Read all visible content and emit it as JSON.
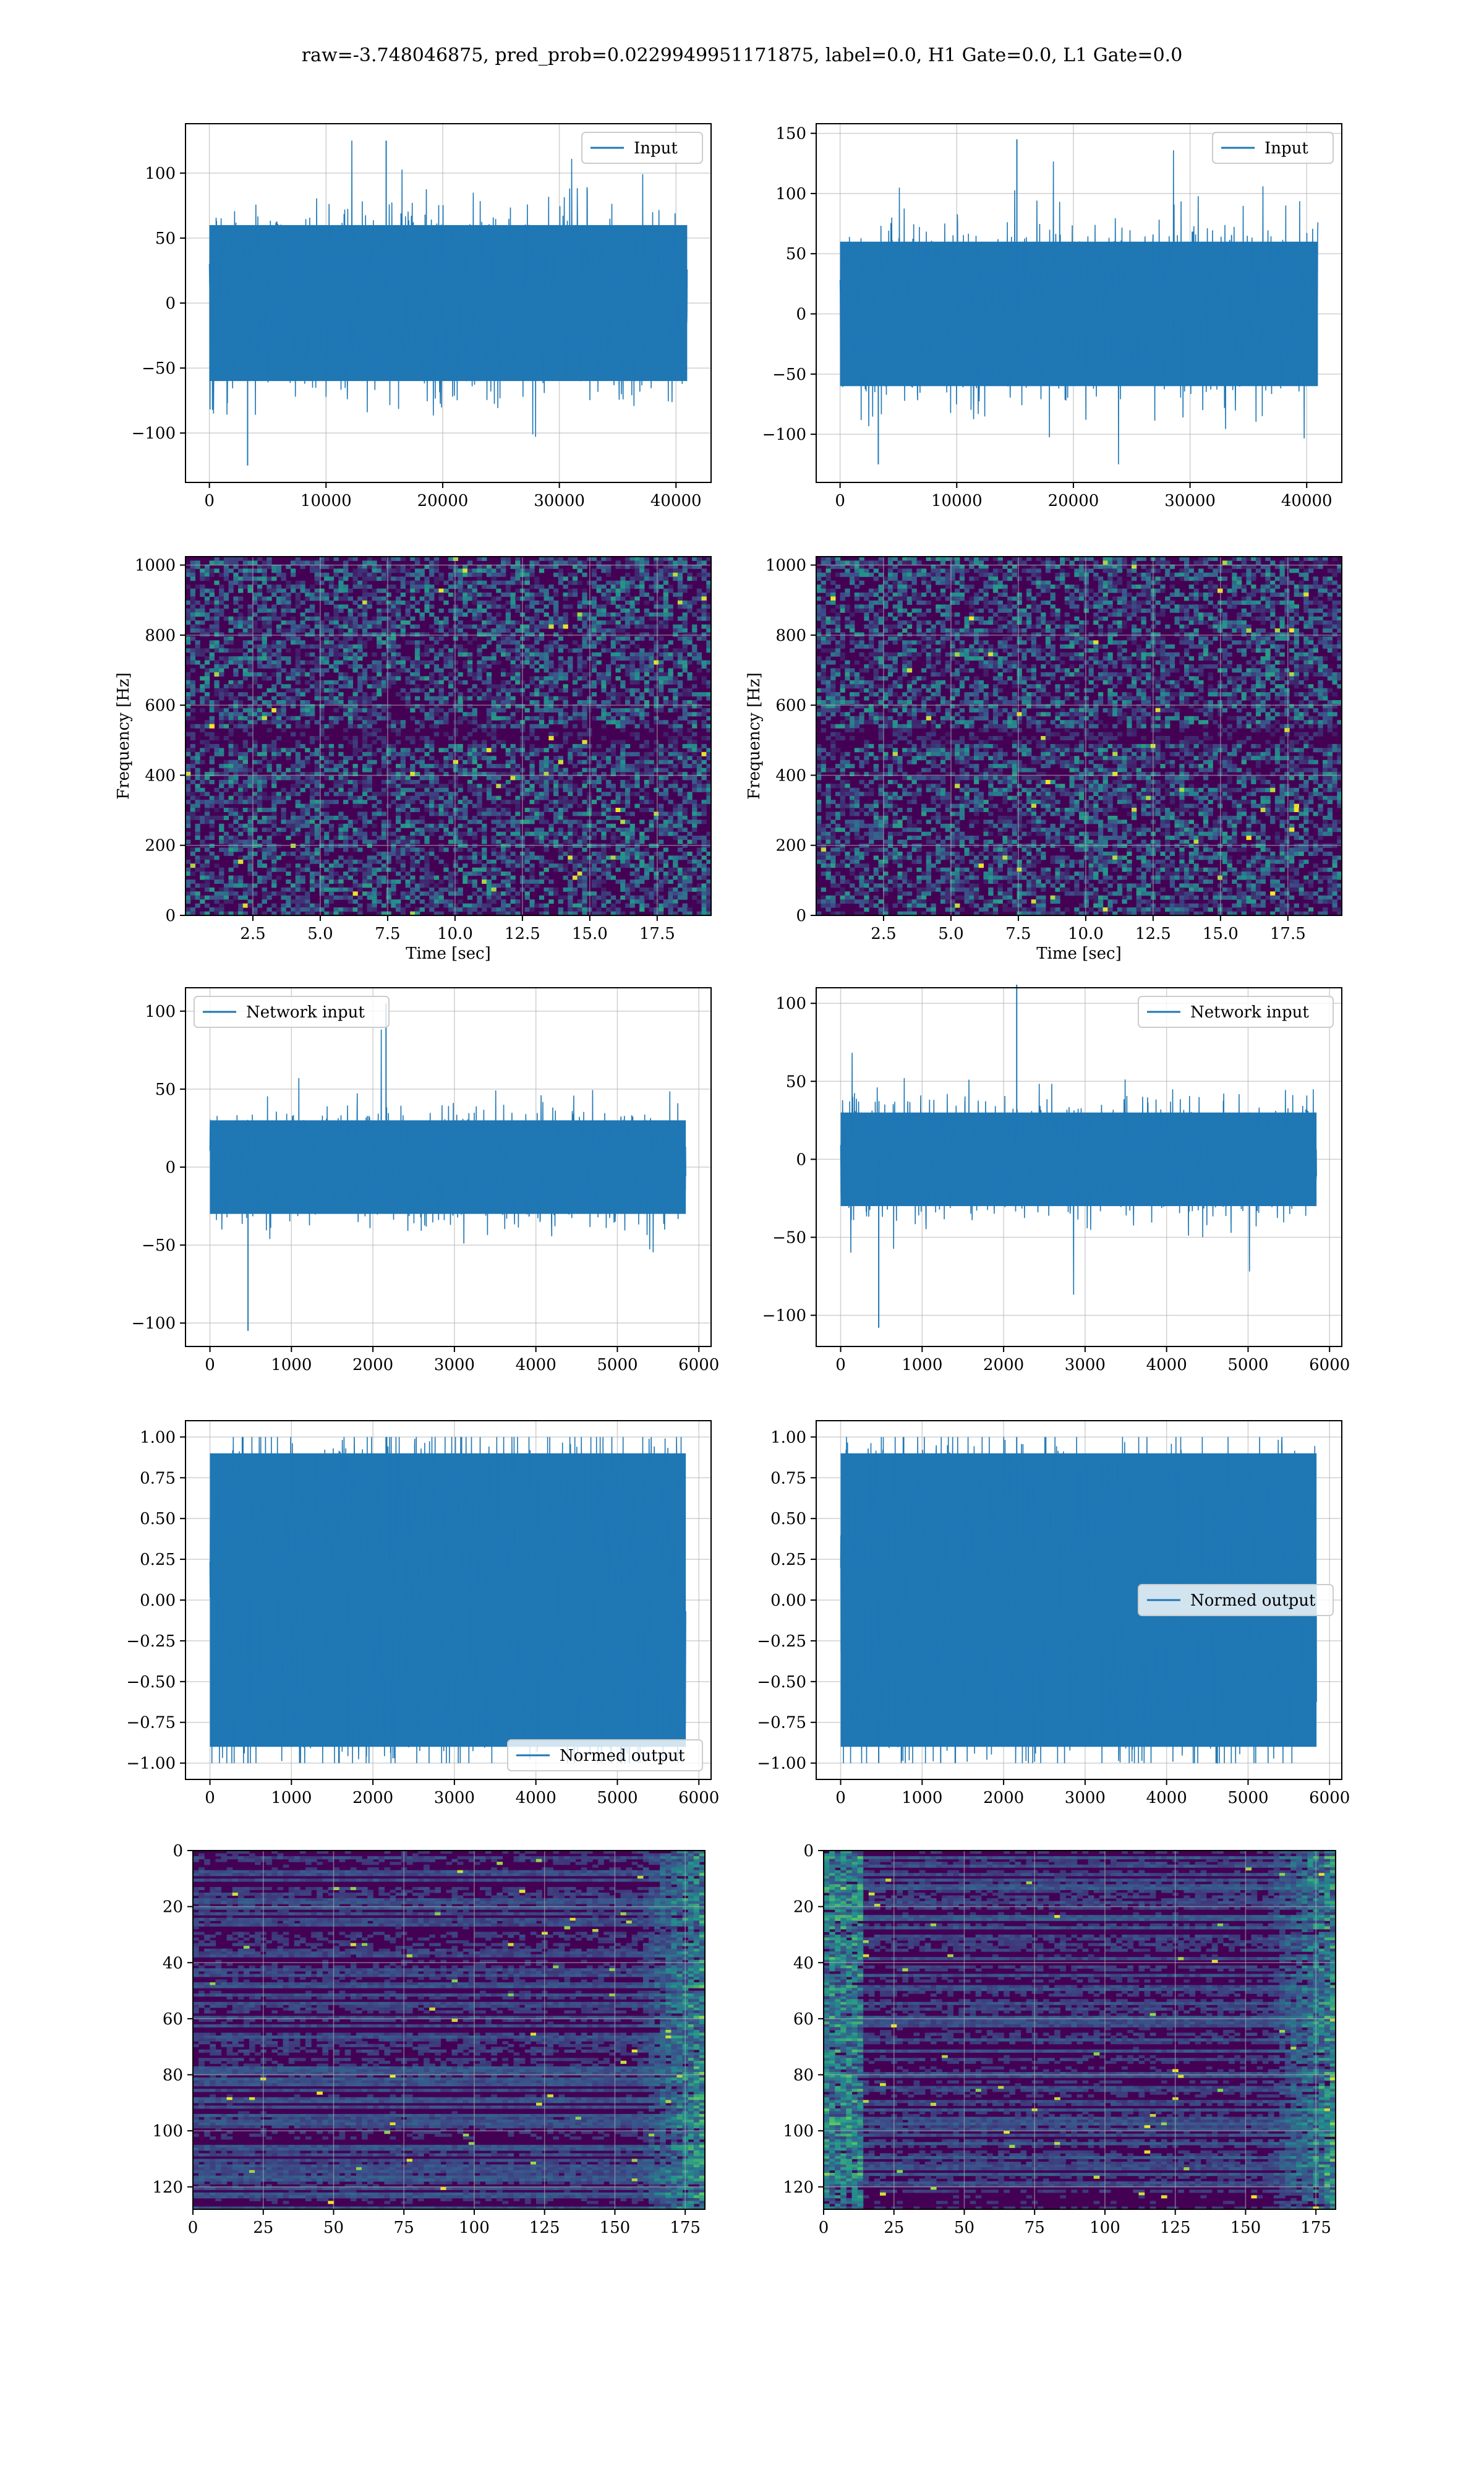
{
  "figure": {
    "suptitle": "raw=-3.748046875, pred_prob=0.0229949951171875, label=0.0, H1 Gate=0.0, L1 Gate=0.0"
  },
  "colors": {
    "line": "#1f77b4",
    "grid": "#b0b0b0",
    "viridis_low": "#440154",
    "viridis_high": "#fde725"
  },
  "chart_data": [
    {
      "id": "h1-input",
      "type": "line",
      "title": "",
      "xlabel": "",
      "ylabel": "",
      "series": [
        {
          "name": "Input",
          "x_range": [
            0,
            40960
          ],
          "amplitude_band": [
            -60,
            60
          ],
          "max": 125,
          "min": -125
        }
      ],
      "xlim": [
        -2048,
        43008
      ],
      "ylim": [
        -138,
        138
      ],
      "xticks": [
        0,
        10000,
        20000,
        30000,
        40000
      ],
      "xtick_labels": [
        "0",
        "10000",
        "20000",
        "30000",
        "40000"
      ],
      "yticks": [
        -100,
        -50,
        0,
        50,
        100
      ],
      "ytick_labels": [
        "−100",
        "−50",
        "0",
        "50",
        "100"
      ],
      "legend": "upper right",
      "grid": true
    },
    {
      "id": "l1-input",
      "type": "line",
      "title": "",
      "xlabel": "",
      "ylabel": "",
      "series": [
        {
          "name": "Input",
          "x_range": [
            0,
            40960
          ],
          "amplitude_band": [
            -60,
            60
          ],
          "max": 145,
          "min": -125
        }
      ],
      "xlim": [
        -2048,
        43008
      ],
      "ylim": [
        -140,
        158
      ],
      "xticks": [
        0,
        10000,
        20000,
        30000,
        40000
      ],
      "xtick_labels": [
        "0",
        "10000",
        "20000",
        "30000",
        "40000"
      ],
      "yticks": [
        -100,
        -50,
        0,
        50,
        100,
        150
      ],
      "ytick_labels": [
        "−100",
        "−50",
        "0",
        "50",
        "100",
        "150"
      ],
      "legend": "upper right",
      "grid": true
    },
    {
      "id": "h1-spectrogram",
      "type": "heatmap",
      "title": "",
      "xlabel": "Time [sec]",
      "ylabel": "Frequency [Hz]",
      "xlim": [
        0,
        19.5
      ],
      "ylim": [
        0,
        1024
      ],
      "colormap": "viridis",
      "xticks": [
        2.5,
        5.0,
        7.5,
        10.0,
        12.5,
        15.0,
        17.5
      ],
      "xtick_labels": [
        "2.5",
        "5.0",
        "7.5",
        "10.0",
        "12.5",
        "15.0",
        "17.5"
      ],
      "yticks": [
        0,
        200,
        400,
        600,
        800,
        1000
      ],
      "ytick_labels": [
        "0",
        "200",
        "400",
        "600",
        "800",
        "1000"
      ],
      "features": "uniform noise; dark horizontal band near 512 Hz",
      "grid": true
    },
    {
      "id": "l1-spectrogram",
      "type": "heatmap",
      "title": "",
      "xlabel": "Time [sec]",
      "ylabel": "Frequency [Hz]",
      "xlim": [
        0,
        19.5
      ],
      "ylim": [
        0,
        1024
      ],
      "colormap": "viridis",
      "xticks": [
        2.5,
        5.0,
        7.5,
        10.0,
        12.5,
        15.0,
        17.5
      ],
      "xtick_labels": [
        "2.5",
        "5.0",
        "7.5",
        "10.0",
        "12.5",
        "15.0",
        "17.5"
      ],
      "yticks": [
        0,
        200,
        400,
        600,
        800,
        1000
      ],
      "ytick_labels": [
        "0",
        "200",
        "400",
        "600",
        "800",
        "1000"
      ],
      "features": "uniform noise; dark horizontal band near 512 Hz",
      "grid": true
    },
    {
      "id": "h1-network-input",
      "type": "line",
      "title": "",
      "xlabel": "",
      "ylabel": "",
      "series": [
        {
          "name": "Network input",
          "x_range": [
            0,
            5840
          ],
          "amplitude_band": [
            -30,
            30
          ],
          "max": 105,
          "min": -105
        }
      ],
      "xlim": [
        -300,
        6150
      ],
      "ylim": [
        -115,
        115
      ],
      "xticks": [
        0,
        1000,
        2000,
        3000,
        4000,
        5000,
        6000
      ],
      "xtick_labels": [
        "0",
        "1000",
        "2000",
        "3000",
        "4000",
        "5000",
        "6000"
      ],
      "yticks": [
        -100,
        -50,
        0,
        50,
        100
      ],
      "ytick_labels": [
        "−100",
        "−50",
        "0",
        "50",
        "100"
      ],
      "legend": "upper left",
      "grid": true
    },
    {
      "id": "l1-network-input",
      "type": "line",
      "title": "",
      "xlabel": "",
      "ylabel": "",
      "series": [
        {
          "name": "Network input",
          "x_range": [
            0,
            5840
          ],
          "amplitude_band": [
            -30,
            30
          ],
          "max": 112,
          "min": -108
        }
      ],
      "xlim": [
        -300,
        6150
      ],
      "ylim": [
        -120,
        110
      ],
      "xticks": [
        0,
        1000,
        2000,
        3000,
        4000,
        5000,
        6000
      ],
      "xtick_labels": [
        "0",
        "1000",
        "2000",
        "3000",
        "4000",
        "5000",
        "6000"
      ],
      "yticks": [
        -100,
        -50,
        0,
        50,
        100
      ],
      "ytick_labels": [
        "−100",
        "−50",
        "0",
        "50",
        "100"
      ],
      "legend": "upper right",
      "grid": true
    },
    {
      "id": "h1-normed-output",
      "type": "line",
      "title": "",
      "xlabel": "",
      "ylabel": "",
      "series": [
        {
          "name": "Normed output",
          "x_range": [
            0,
            5840
          ],
          "amplitude_band": [
            -0.9,
            0.9
          ],
          "max": 1.0,
          "min": -1.0
        }
      ],
      "xlim": [
        -300,
        6150
      ],
      "ylim": [
        -1.1,
        1.1
      ],
      "xticks": [
        0,
        1000,
        2000,
        3000,
        4000,
        5000,
        6000
      ],
      "xtick_labels": [
        "0",
        "1000",
        "2000",
        "3000",
        "4000",
        "5000",
        "6000"
      ],
      "yticks": [
        -1.0,
        -0.75,
        -0.5,
        -0.25,
        0.0,
        0.25,
        0.5,
        0.75,
        1.0
      ],
      "ytick_labels": [
        "−1.00",
        "−0.75",
        "−0.50",
        "−0.25",
        "0.00",
        "0.25",
        "0.50",
        "0.75",
        "1.00"
      ],
      "legend": "lower right",
      "grid": true
    },
    {
      "id": "l1-normed-output",
      "type": "line",
      "title": "",
      "xlabel": "",
      "ylabel": "",
      "series": [
        {
          "name": "Normed output",
          "x_range": [
            0,
            5840
          ],
          "amplitude_band": [
            -0.9,
            0.9
          ],
          "max": 1.0,
          "min": -1.0
        }
      ],
      "xlim": [
        -300,
        6150
      ],
      "ylim": [
        -1.1,
        1.1
      ],
      "xticks": [
        0,
        1000,
        2000,
        3000,
        4000,
        5000,
        6000
      ],
      "xtick_labels": [
        "0",
        "1000",
        "2000",
        "3000",
        "4000",
        "5000",
        "6000"
      ],
      "yticks": [
        -1.0,
        -0.75,
        -0.5,
        -0.25,
        0.0,
        0.25,
        0.5,
        0.75,
        1.0
      ],
      "ytick_labels": [
        "−1.00",
        "−0.75",
        "−0.50",
        "−0.25",
        "0.00",
        "0.25",
        "0.50",
        "0.75",
        "1.00"
      ],
      "legend": "center right",
      "grid": true
    },
    {
      "id": "h1-feature-map",
      "type": "heatmap",
      "title": "",
      "xlabel": "",
      "ylabel": "",
      "xlim": [
        0,
        182
      ],
      "ylim": [
        128,
        0
      ],
      "colormap": "viridis",
      "xticks": [
        0,
        25,
        50,
        75,
        100,
        125,
        150,
        175
      ],
      "xtick_labels": [
        "0",
        "25",
        "50",
        "75",
        "100",
        "125",
        "150",
        "175"
      ],
      "yticks": [
        0,
        20,
        40,
        60,
        80,
        100,
        120
      ],
      "ytick_labels": [
        "0",
        "20",
        "40",
        "60",
        "80",
        "100",
        "120"
      ],
      "features": "row-wise horizontal streaks; brighter activations near columns 160-182",
      "grid": true
    },
    {
      "id": "l1-feature-map",
      "type": "heatmap",
      "title": "",
      "xlabel": "",
      "ylabel": "",
      "xlim": [
        0,
        182
      ],
      "ylim": [
        128,
        0
      ],
      "colormap": "viridis",
      "xticks": [
        0,
        25,
        50,
        75,
        100,
        125,
        150,
        175
      ],
      "xtick_labels": [
        "0",
        "25",
        "50",
        "75",
        "100",
        "125",
        "150",
        "175"
      ],
      "yticks": [
        0,
        20,
        40,
        60,
        80,
        100,
        120
      ],
      "ytick_labels": [
        "0",
        "20",
        "40",
        "60",
        "80",
        "100",
        "120"
      ],
      "features": "row-wise horizontal streaks; bright activations near columns 0-15 and 170-182",
      "grid": true
    }
  ]
}
